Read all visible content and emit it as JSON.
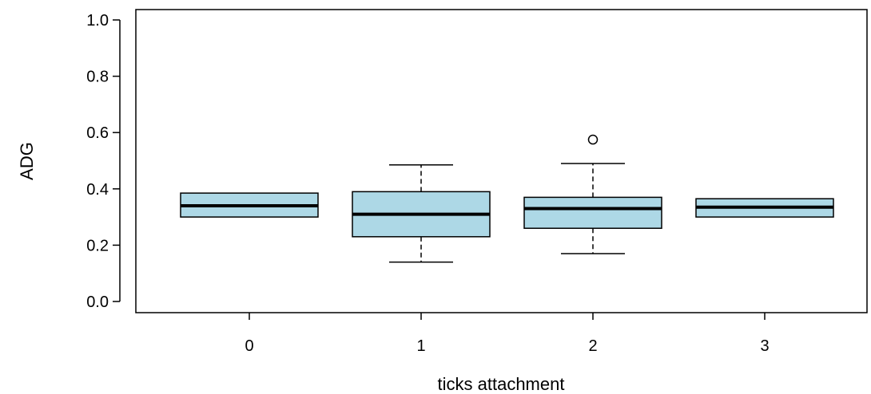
{
  "chart_data": {
    "type": "box",
    "title": "",
    "xlabel": "ticks attachment",
    "ylabel": "ADG",
    "ylim": [
      0,
      1.0
    ],
    "yticks": [
      0.0,
      0.2,
      0.4,
      0.6,
      0.8,
      1.0
    ],
    "ytick_labels": [
      "0.0",
      "0.2",
      "0.4",
      "0.6",
      "0.8",
      "1.0"
    ],
    "categories": [
      "0",
      "1",
      "2",
      "3"
    ],
    "grid": false,
    "box_fill": "#add8e6",
    "boxes": [
      {
        "category": "0",
        "lower_whisker": 0.3,
        "q1": 0.3,
        "median": 0.34,
        "q3": 0.385,
        "upper_whisker": 0.385,
        "outliers": []
      },
      {
        "category": "1",
        "lower_whisker": 0.14,
        "q1": 0.23,
        "median": 0.31,
        "q3": 0.39,
        "upper_whisker": 0.485,
        "outliers": []
      },
      {
        "category": "2",
        "lower_whisker": 0.17,
        "q1": 0.26,
        "median": 0.33,
        "q3": 0.37,
        "upper_whisker": 0.49,
        "outliers": [
          0.575
        ]
      },
      {
        "category": "3",
        "lower_whisker": 0.3,
        "q1": 0.3,
        "median": 0.335,
        "q3": 0.365,
        "upper_whisker": 0.365,
        "outliers": []
      }
    ]
  }
}
